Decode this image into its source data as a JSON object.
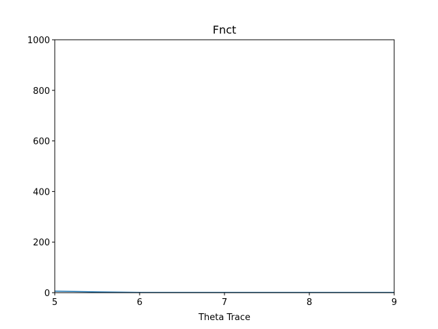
{
  "chart_data": {
    "type": "line",
    "title": "Fnct",
    "xlabel": "Theta Trace",
    "ylabel": "",
    "xlim": [
      5,
      9
    ],
    "ylim": [
      0,
      1000
    ],
    "xticks": [
      5,
      6,
      7,
      8,
      9
    ],
    "yticks": [
      0,
      200,
      400,
      600,
      800,
      1000
    ],
    "grid": false,
    "series": [
      {
        "color": "#1f77b4",
        "x": [
          5,
          5.5,
          6,
          6.5,
          7,
          7.5,
          8,
          8.5,
          9
        ],
        "y": [
          6,
          3,
          1,
          1,
          1,
          1,
          1,
          1,
          1
        ]
      }
    ]
  }
}
